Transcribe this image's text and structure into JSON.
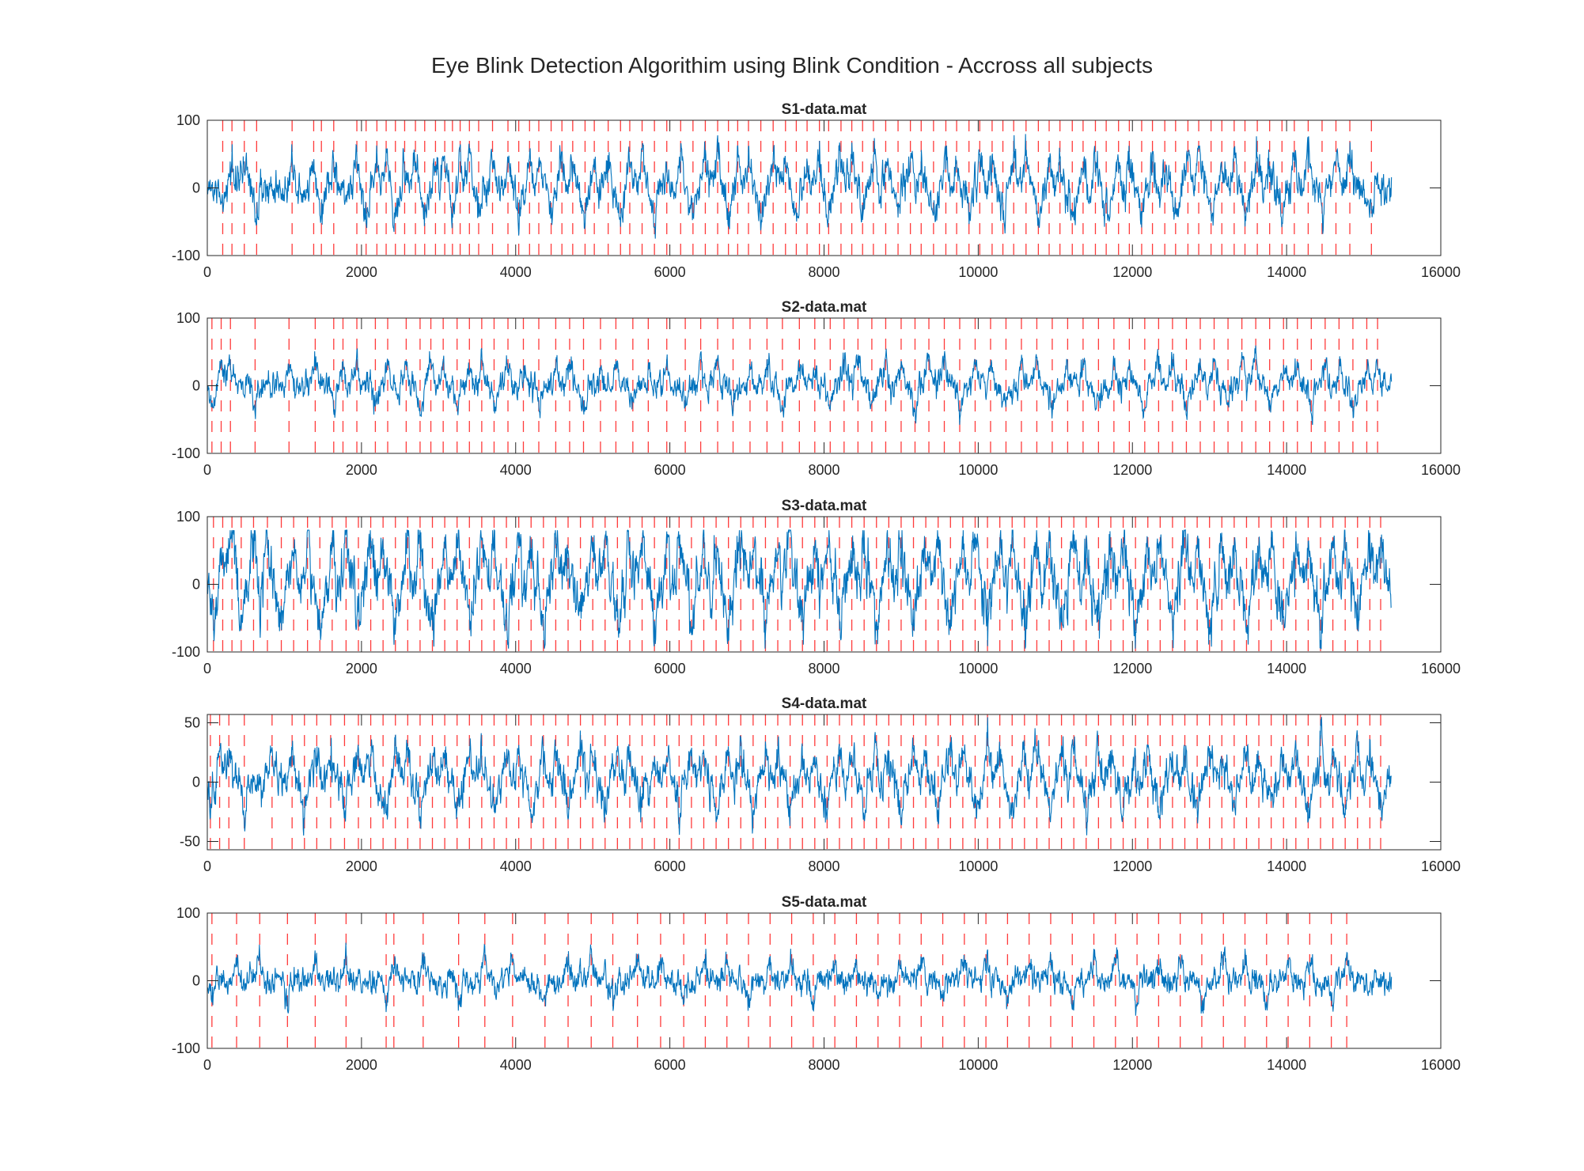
{
  "chart_data": {
    "type": "line",
    "suptitle": "Eye Blink Detection Algorithim using Blink Condition - Accross all subjects",
    "colors": {
      "signal": "#0072BD",
      "blink_marker": "#FF3B3B",
      "axes": "#262626"
    },
    "shared_x": {
      "xlim": [
        0,
        16000
      ],
      "xticks": [
        0,
        2000,
        4000,
        6000,
        8000,
        10000,
        12000,
        14000,
        16000
      ],
      "xtick_labels": [
        "0",
        "2000",
        "4000",
        "6000",
        "8000",
        "10000",
        "12000",
        "14000",
        "16000"
      ],
      "signal_length": 15360
    },
    "subplots": [
      {
        "title": "S1-data.mat",
        "ylim": [
          -100,
          100
        ],
        "yticks": [
          -100,
          0,
          100
        ],
        "ytick_labels": [
          "-100",
          "0",
          "100"
        ],
        "signal": {
          "amplitude": 30,
          "peak_max": 90,
          "peak_min": -75
        },
        "blink_markers": [
          200,
          320,
          480,
          640,
          1100,
          1380,
          1480,
          1640,
          1940,
          2060,
          2200,
          2320,
          2440,
          2560,
          2700,
          2820,
          2960,
          3080,
          3180,
          3280,
          3400,
          3520,
          3700,
          3900,
          4040,
          4180,
          4300,
          4460,
          4600,
          4740,
          4900,
          5020,
          5200,
          5360,
          5480,
          5640,
          5800,
          5960,
          6140,
          6300,
          6460,
          6620,
          6760,
          6880,
          7020,
          7180,
          7340,
          7500,
          7640,
          7780,
          7940,
          8060,
          8220,
          8360,
          8500,
          8640,
          8800,
          8960,
          9120,
          9260,
          9420,
          9580,
          9720,
          9880,
          10020,
          10180,
          10320,
          10460,
          10620,
          10780,
          10920,
          11060,
          11220,
          11360,
          11520,
          11660,
          11820,
          11960,
          12120,
          12260,
          12420,
          12560,
          12720,
          12860,
          13020,
          13160,
          13320,
          13460,
          13620,
          13780,
          13940,
          14100,
          14280,
          14460,
          14640,
          14820,
          15100
        ]
      },
      {
        "title": "S2-data.mat",
        "ylim": [
          -100,
          100
        ],
        "yticks": [
          -100,
          0,
          100
        ],
        "ytick_labels": [
          "-100",
          "0",
          "100"
        ],
        "signal": {
          "amplitude": 22,
          "peak_max": 95,
          "peak_min": -85
        },
        "blink_markers": [
          60,
          180,
          300,
          620,
          1060,
          1400,
          1640,
          1760,
          1940,
          2180,
          2340,
          2580,
          2760,
          2900,
          3060,
          3240,
          3400,
          3560,
          3720,
          3900,
          4100,
          4300,
          4520,
          4700,
          4880,
          5100,
          5300,
          5520,
          5720,
          5960,
          6200,
          6400,
          6620,
          6820,
          7040,
          7260,
          7460,
          7680,
          7880,
          8080,
          8260,
          8440,
          8620,
          8800,
          9000,
          9180,
          9360,
          9560,
          9760,
          9960,
          10160,
          10360,
          10560,
          10760,
          10960,
          11160,
          11360,
          11560,
          11760,
          11960,
          12160,
          12340,
          12520,
          12700,
          12880,
          13060,
          13240,
          13420,
          13600,
          13780,
          13960,
          14140,
          14320,
          14500,
          14680,
          14860,
          15040,
          15180
        ]
      },
      {
        "title": "S3-data.mat",
        "ylim": [
          -100,
          100
        ],
        "yticks": [
          -100,
          0,
          100
        ],
        "ytick_labels": [
          "-100",
          "0",
          "100"
        ],
        "signal": {
          "amplitude": 45,
          "peak_max": 80,
          "peak_min": -95
        },
        "blink_markers": [
          80,
          200,
          320,
          440,
          600,
          780,
          960,
          1120,
          1300,
          1460,
          1620,
          1800,
          1960,
          2120,
          2280,
          2440,
          2600,
          2760,
          2920,
          3080,
          3240,
          3400,
          3560,
          3720,
          3880,
          4040,
          4200,
          4360,
          4520,
          4680,
          4840,
          5000,
          5160,
          5320,
          5480,
          5640,
          5800,
          5960,
          6120,
          6280,
          6440,
          6600,
          6760,
          6920,
          7080,
          7240,
          7400,
          7560,
          7720,
          7880,
          8040,
          8200,
          8360,
          8520,
          8680,
          8840,
          9000,
          9160,
          9320,
          9480,
          9640,
          9800,
          9960,
          10120,
          10280,
          10440,
          10600,
          10760,
          10920,
          11080,
          11240,
          11400,
          11560,
          11720,
          11880,
          12040,
          12200,
          12360,
          12520,
          12680,
          12840,
          13000,
          13160,
          13320,
          13480,
          13640,
          13800,
          13960,
          14120,
          14280,
          14440,
          14600,
          14760,
          14920,
          15080,
          15220
        ]
      },
      {
        "title": "S4-data.mat",
        "ylim": [
          -57,
          57
        ],
        "yticks": [
          -50,
          0,
          50
        ],
        "ytick_labels": [
          "-50",
          "0",
          "50"
        ],
        "signal": {
          "amplitude": 18,
          "peak_max": 55,
          "peak_min": -52
        },
        "blink_markers": [
          40,
          160,
          280,
          480,
          840,
          1100,
          1260,
          1420,
          1600,
          1780,
          1960,
          2120,
          2280,
          2440,
          2600,
          2760,
          2920,
          3080,
          3240,
          3400,
          3560,
          3720,
          3880,
          4040,
          4200,
          4360,
          4520,
          4680,
          4840,
          5000,
          5160,
          5320,
          5480,
          5640,
          5800,
          5960,
          6120,
          6280,
          6440,
          6600,
          6760,
          6920,
          7080,
          7240,
          7400,
          7560,
          7720,
          7880,
          8040,
          8200,
          8360,
          8520,
          8680,
          8840,
          9000,
          9160,
          9320,
          9480,
          9640,
          9800,
          9960,
          10120,
          10280,
          10440,
          10600,
          10760,
          10920,
          11080,
          11240,
          11400,
          11560,
          11720,
          11880,
          12040,
          12200,
          12360,
          12520,
          12680,
          12840,
          13000,
          13160,
          13320,
          13480,
          13640,
          13800,
          13960,
          14120,
          14280,
          14440,
          14600,
          14760,
          14920,
          15080,
          15220
        ]
      },
      {
        "title": "S5-data.mat",
        "ylim": [
          -100,
          100
        ],
        "yticks": [
          -100,
          0,
          100
        ],
        "ytick_labels": [
          "-100",
          "0",
          "100"
        ],
        "signal": {
          "amplitude": 22,
          "peak_max": 98,
          "peak_min": -85
        },
        "blink_markers": [
          60,
          380,
          680,
          1040,
          1400,
          1800,
          2320,
          2420,
          2800,
          3260,
          3600,
          3960,
          4380,
          4680,
          4980,
          5260,
          5580,
          5880,
          6180,
          6460,
          6740,
          7020,
          7300,
          7580,
          7860,
          8140,
          8420,
          8700,
          8980,
          9260,
          9540,
          9820,
          10100,
          10380,
          10660,
          10940,
          11220,
          11500,
          11780,
          12060,
          12340,
          12620,
          12900,
          13180,
          13460,
          13740,
          14020,
          14300,
          14580,
          14780
        ]
      }
    ]
  }
}
